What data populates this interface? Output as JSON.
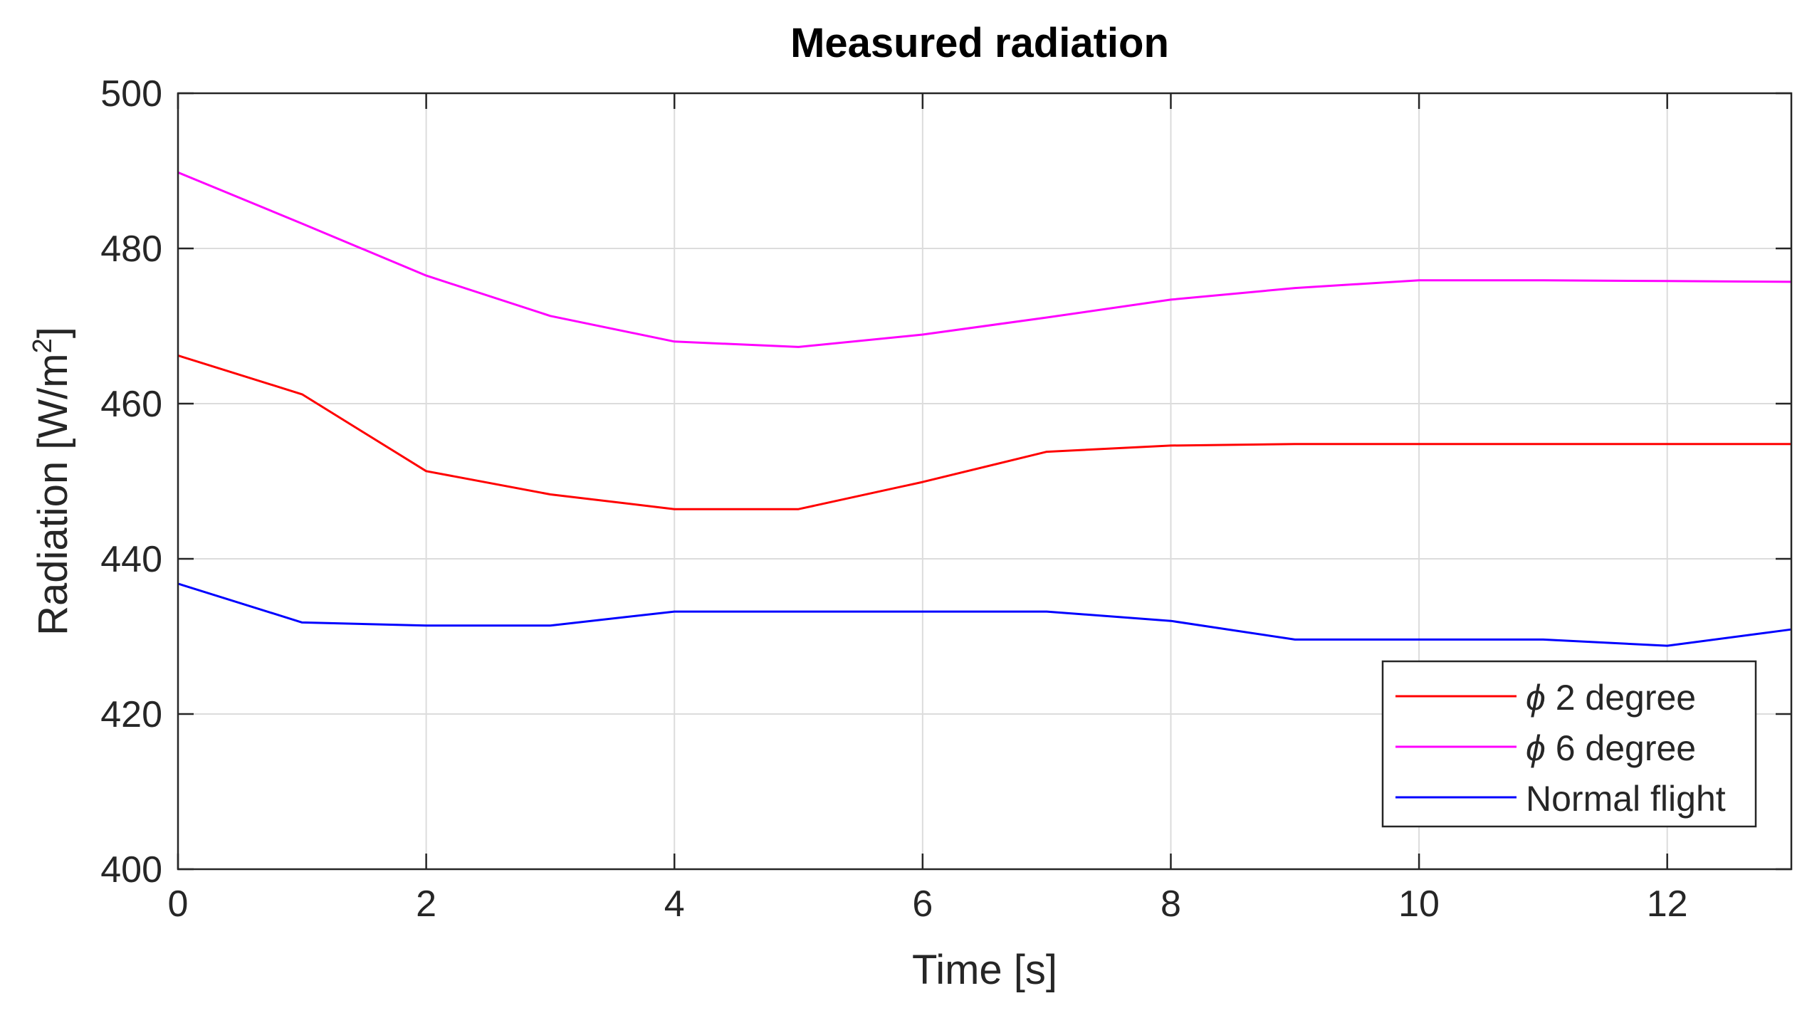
{
  "chart_data": {
    "type": "line",
    "title": "Measured radiation",
    "xlabel": "Time [s]",
    "ylabel_main": "Radiation [W/m",
    "ylabel_sup": "2",
    "ylabel_close": "]",
    "xlim": [
      0,
      13
    ],
    "ylim": [
      400,
      500
    ],
    "xticks": [
      0,
      2,
      4,
      6,
      8,
      10,
      12
    ],
    "yticks": [
      400,
      420,
      440,
      460,
      480,
      500
    ],
    "grid": true,
    "legend_position": "bottom-right",
    "x": [
      0,
      1,
      2,
      3,
      4,
      5,
      6,
      7,
      8,
      9,
      10,
      11,
      12,
      13
    ],
    "series": [
      {
        "symbol": "ϕ",
        "label_text": " 2 degree",
        "color": "#ff0000",
        "values": [
          466.2,
          461.2,
          451.3,
          448.3,
          446.4,
          446.4,
          449.9,
          453.8,
          454.6,
          454.8,
          454.8,
          454.8,
          454.8,
          454.8
        ]
      },
      {
        "symbol": "ϕ",
        "label_text": " 6 degree",
        "color": "#ff00ff",
        "values": [
          489.8,
          483.2,
          476.5,
          471.3,
          468.0,
          467.3,
          468.9,
          471.1,
          473.4,
          474.9,
          475.9,
          475.9,
          475.8,
          475.7
        ]
      },
      {
        "symbol": "",
        "label_text": "Normal flight",
        "color": "#0000ff",
        "values": [
          436.8,
          431.8,
          431.4,
          431.4,
          433.2,
          433.2,
          433.2,
          433.2,
          432.0,
          429.6,
          429.6,
          429.6,
          428.8,
          430.9
        ]
      }
    ]
  }
}
